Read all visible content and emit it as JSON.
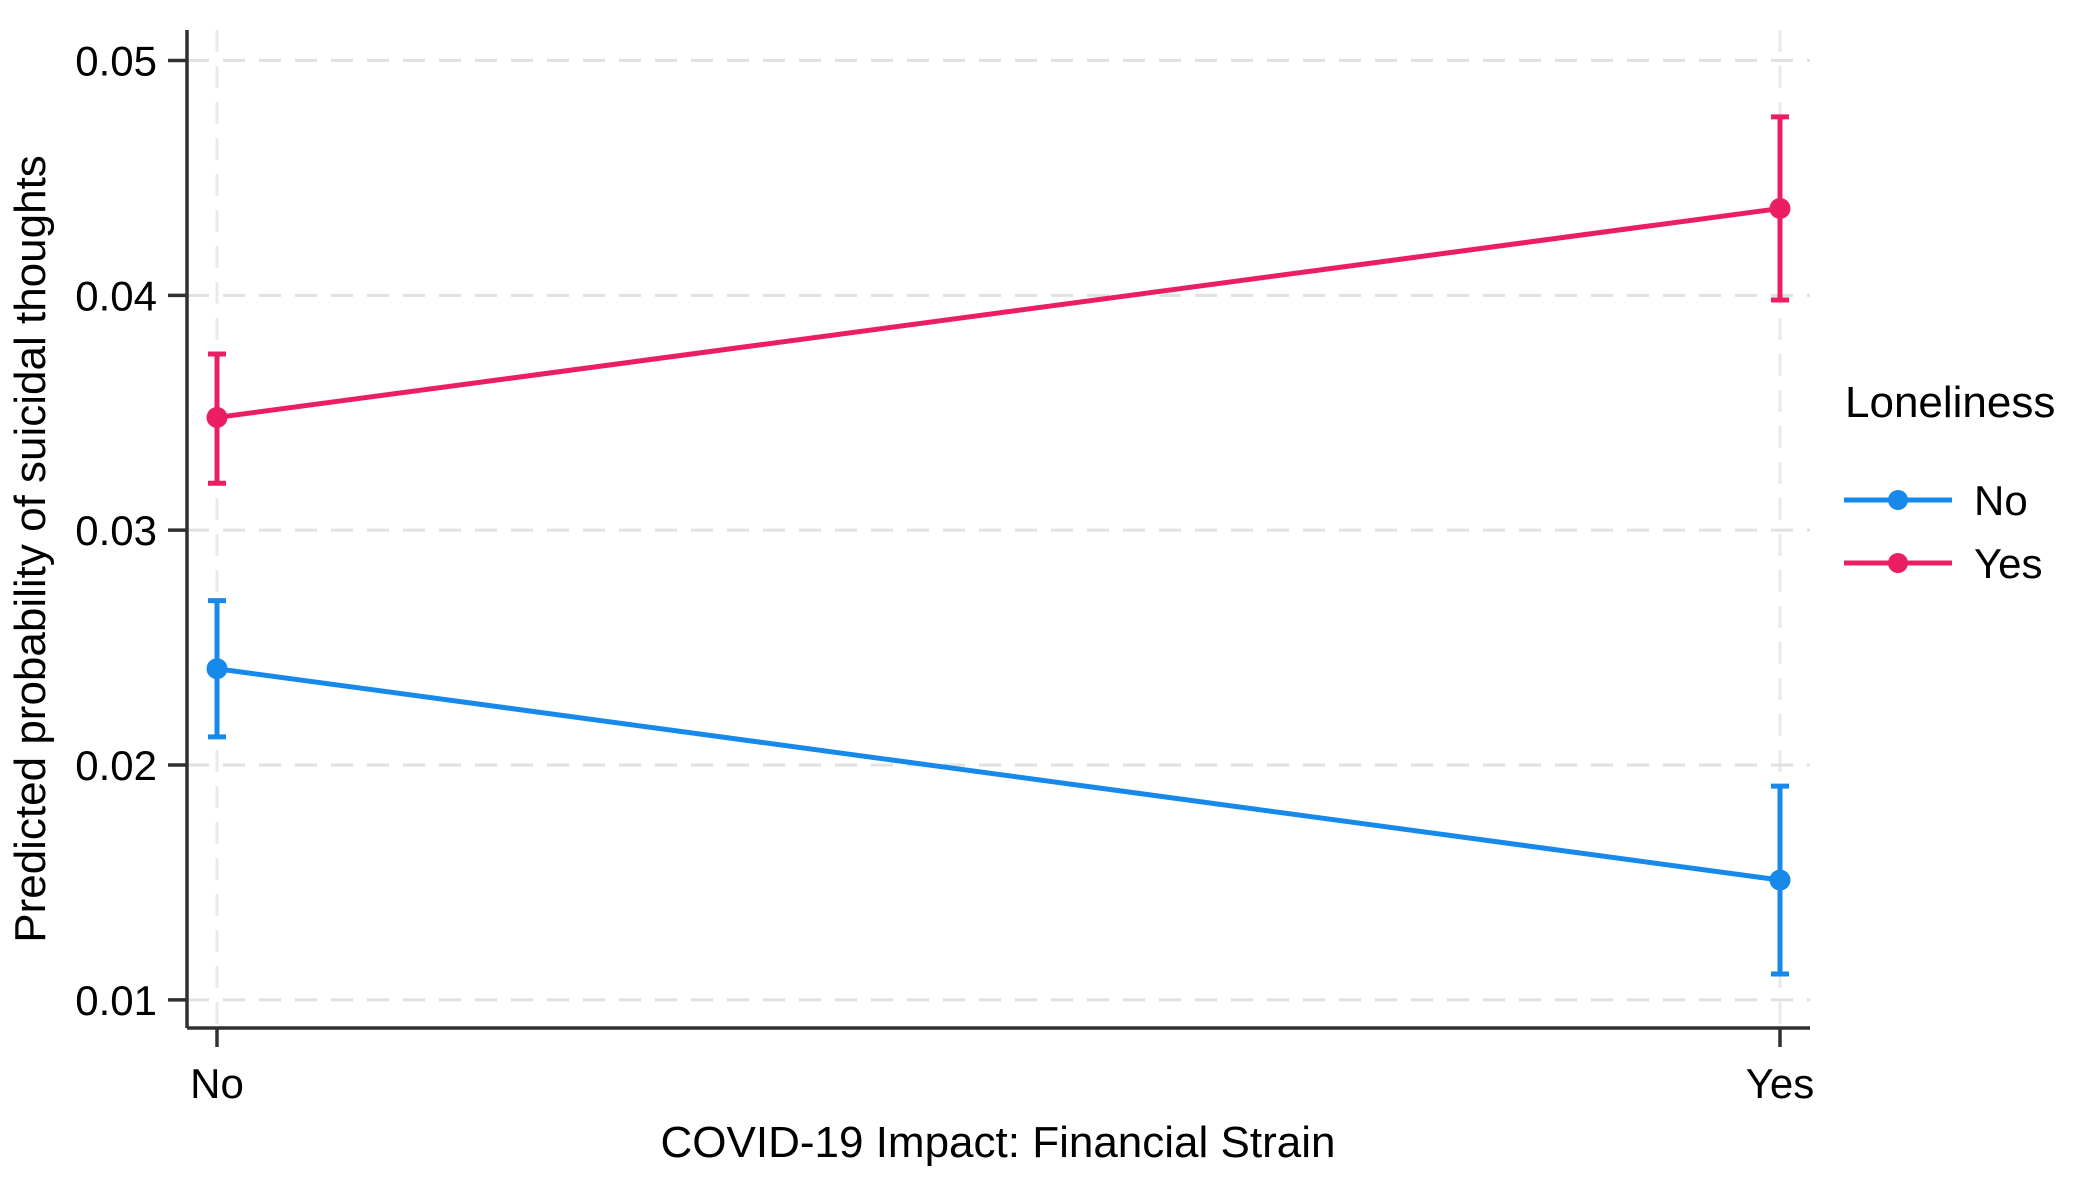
{
  "figure": {
    "background": "#ffffff"
  },
  "chart_data": {
    "type": "line",
    "title": "",
    "xlabel": "COVID-19 Impact: Financial Strain",
    "ylabel": "Predicted probability of suicidal thoughts",
    "categories": [
      "No",
      "Yes"
    ],
    "yticks": [
      0.05,
      0.04,
      0.03,
      0.02,
      0.01
    ],
    "ytick_labels": [
      "0.05",
      "0.04",
      "0.03",
      "0.02",
      "0.01"
    ],
    "ylim": [
      0.0088,
      0.0513
    ],
    "grid": "dashed horizontal gridlines at each y tick and dashed vertical gridlines at each category",
    "legend": {
      "title": "Loneliness",
      "position": "right-outside",
      "entries": [
        "No",
        "Yes"
      ]
    },
    "series": [
      {
        "name": "No",
        "color": "#1689EA",
        "marker": "circle",
        "means": [
          0.0241,
          0.0151
        ],
        "ci_low": [
          0.0212,
          0.0111
        ],
        "ci_high": [
          0.027,
          0.0191
        ]
      },
      {
        "name": "Yes",
        "color": "#EC1E63",
        "marker": "circle",
        "means": [
          0.0348,
          0.0437
        ],
        "ci_low": [
          0.032,
          0.0398
        ],
        "ci_high": [
          0.0375,
          0.0476
        ]
      }
    ],
    "axis_color": "#303030",
    "gridline_color": "#e1e1e1",
    "gridline_color_vertical": "#eaeaea"
  }
}
